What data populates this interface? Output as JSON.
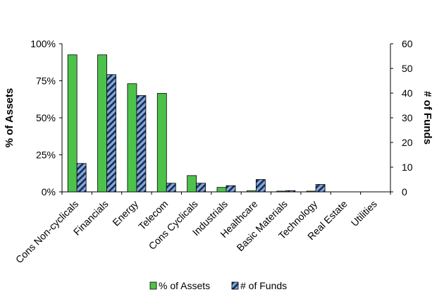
{
  "chart_data": {
    "type": "bar",
    "categories": [
      "Cons Non-cyclicals",
      "Financials",
      "Energy",
      "Telecom",
      "Cons Cyclicals",
      "Industrials",
      "Healthcare",
      "Basic Materials",
      "Technology",
      "Real Estate",
      "Utilities"
    ],
    "series": [
      {
        "name": "% of Assets",
        "axis": "left",
        "color": "#4CC24A",
        "values": [
          92.5,
          92.5,
          73,
          66.5,
          11,
          3,
          0.7,
          0.5,
          0.5,
          0,
          0
        ]
      },
      {
        "name": "# of Funds",
        "axis": "right",
        "color": "#7FA6DD",
        "pattern": "diagonal-stripes",
        "values": [
          11.5,
          47.5,
          39,
          3.5,
          3.5,
          2.5,
          5,
          0.5,
          3,
          0,
          0
        ]
      }
    ],
    "ylabel_left": "% of Assets",
    "ylabel_right": "# of Funds",
    "ylim_left": [
      0,
      100
    ],
    "ylim_right": [
      0,
      60
    ],
    "yticks_left": [
      "0%",
      "25%",
      "50%",
      "75%",
      "100%"
    ],
    "yticks_right": [
      "0",
      "10",
      "20",
      "30",
      "40",
      "50",
      "60"
    ],
    "legend": {
      "placement": "bottom"
    },
    "grid": false
  }
}
